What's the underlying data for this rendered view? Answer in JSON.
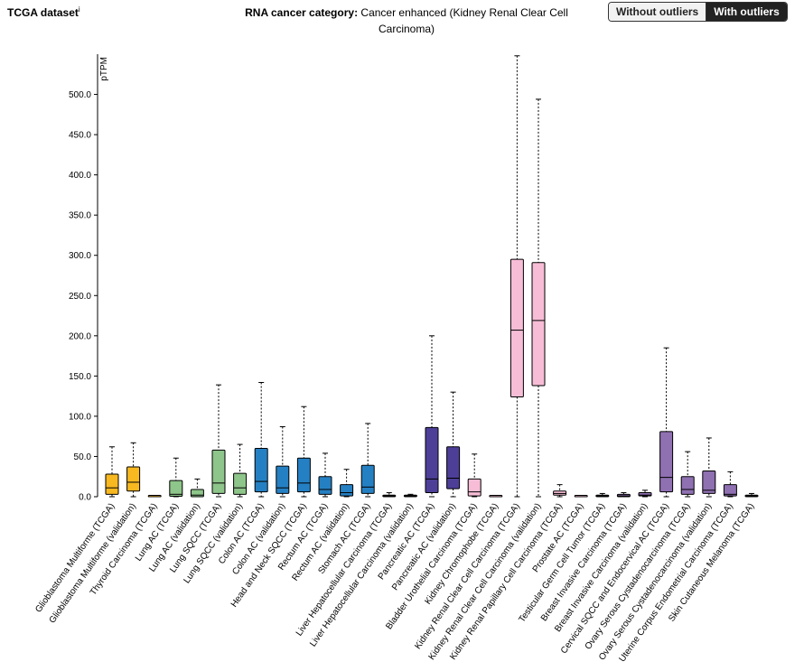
{
  "header": {
    "dataset_title": "TCGA dataset",
    "dataset_info_mark": "i",
    "category_label": "RNA cancer category:",
    "category_value": "Cancer enhanced (Kidney Renal Clear Cell Carcinoma)",
    "toggle": {
      "without_label": "Without outliers",
      "with_label": "With outliers",
      "active": "with"
    }
  },
  "colors": {
    "yellow": "#f7b820",
    "green": "#8ec58a",
    "blue": "#2580c3",
    "indigo": "#4d3f98",
    "pink": "#f7bdd6",
    "purple": "#8f70b1"
  },
  "chart_data": {
    "type": "boxplot",
    "ylabel": "pTPM",
    "ylim": [
      0,
      550
    ],
    "yticks": [
      0,
      50,
      100,
      150,
      200,
      250,
      300,
      350,
      400,
      450,
      500
    ],
    "ytick_labels": [
      "0.0",
      "50.0",
      "100.0",
      "150.0",
      "200.0",
      "250.0",
      "300.0",
      "350.0",
      "400.0",
      "450.0",
      "500.0"
    ],
    "categories": [
      "Glioblastoma Multiforme (TCGA)",
      "Glioblastoma Multiforme (validation)",
      "Thyroid Carcinoma (TCGA)",
      "Lung AC (TCGA)",
      "Lung AC (validation)",
      "Lung SQCC (TCGA)",
      "Lung SQCC (validation)",
      "Colon AC (TCGA)",
      "Colon AC (validation)",
      "Head and Neck SQCC (TCGA)",
      "Rectum AC (TCGA)",
      "Rectum AC (validation)",
      "Stomach AC (TCGA)",
      "Liver Hepatocellular Carcinoma (TCGA)",
      "Liver Hepatocellular Carcinoma (validation)",
      "Pancreatic AC (TCGA)",
      "Pancreatic AC (validation)",
      "Bladder Urothelial Carcinoma (TCGA)",
      "Kidney Chromophobe (TCGA)",
      "Kidney Renal Clear Cell Carcinoma (TCGA)",
      "Kidney Renal Clear Cell Carcinoma (validation)",
      "Kidney Renal Papillary Cell Carcinoma (TCGA)",
      "Prostate AC (TCGA)",
      "Testicular Germ Cell Tumor (TCGA)",
      "Breast Invasive Carcinoma (TCGA)",
      "Breast Invasive Carcinoma (validation)",
      "Cervical SQCC and Endocervical AC (TCGA)",
      "Ovary Serous Cystadenocarcinoma (TCGA)",
      "Ovary Serous Cystadenocarcinoma (validation)",
      "Uterine Corpus Endometrial Carcinoma (TCGA)",
      "Skin Cutaneous Melanoma (TCGA)"
    ],
    "boxes": [
      {
        "min": 0,
        "q1": 3,
        "median": 11,
        "q3": 28,
        "max": 62,
        "color": "yellow"
      },
      {
        "min": 0,
        "q1": 7,
        "median": 18,
        "q3": 37,
        "max": 67,
        "color": "yellow"
      },
      {
        "min": 0,
        "q1": 0,
        "median": 0,
        "q3": 1,
        "max": 1,
        "color": "yellow"
      },
      {
        "min": 0,
        "q1": 0.5,
        "median": 3,
        "q3": 20,
        "max": 48,
        "color": "green"
      },
      {
        "min": 0,
        "q1": 0,
        "median": 2,
        "q3": 9,
        "max": 22,
        "color": "green"
      },
      {
        "min": 0,
        "q1": 4,
        "median": 17,
        "q3": 58,
        "max": 139,
        "color": "green"
      },
      {
        "min": 0,
        "q1": 3,
        "median": 11,
        "q3": 29,
        "max": 65,
        "color": "green"
      },
      {
        "min": 0,
        "q1": 6,
        "median": 19,
        "q3": 60,
        "max": 142,
        "color": "blue"
      },
      {
        "min": 0,
        "q1": 4,
        "median": 11,
        "q3": 38,
        "max": 87,
        "color": "blue"
      },
      {
        "min": 0,
        "q1": 6,
        "median": 17,
        "q3": 48,
        "max": 112,
        "color": "blue"
      },
      {
        "min": 0,
        "q1": 3,
        "median": 9,
        "q3": 25,
        "max": 54,
        "color": "blue"
      },
      {
        "min": 0,
        "q1": 1,
        "median": 5,
        "q3": 15,
        "max": 34,
        "color": "blue"
      },
      {
        "min": 0,
        "q1": 4,
        "median": 12,
        "q3": 39,
        "max": 91,
        "color": "blue"
      },
      {
        "min": 0,
        "q1": 0,
        "median": 1,
        "q3": 2,
        "max": 5,
        "color": "blue"
      },
      {
        "min": 0,
        "q1": 0,
        "median": 1,
        "q3": 2,
        "max": 3,
        "color": "blue"
      },
      {
        "min": 0,
        "q1": 5,
        "median": 22,
        "q3": 86,
        "max": 200,
        "color": "indigo"
      },
      {
        "min": 0,
        "q1": 10,
        "median": 23,
        "q3": 62,
        "max": 130,
        "color": "indigo"
      },
      {
        "min": 0,
        "q1": 1,
        "median": 6,
        "q3": 22,
        "max": 53,
        "color": "pink"
      },
      {
        "min": 0,
        "q1": 0,
        "median": 0,
        "q3": 1,
        "max": 1,
        "color": "pink"
      },
      {
        "min": 0,
        "q1": 124,
        "median": 207,
        "q3": 295,
        "max": 548,
        "color": "pink"
      },
      {
        "min": 0,
        "q1": 138,
        "median": 219,
        "q3": 291,
        "max": 494,
        "color": "pink"
      },
      {
        "min": 0,
        "q1": 2,
        "median": 4,
        "q3": 7,
        "max": 15,
        "color": "pink"
      },
      {
        "min": 0,
        "q1": 0,
        "median": 0,
        "q3": 1,
        "max": 1,
        "color": "pink"
      },
      {
        "min": 0,
        "q1": 0,
        "median": 1,
        "q3": 2,
        "max": 4,
        "color": "purple"
      },
      {
        "min": 0,
        "q1": 0,
        "median": 1,
        "q3": 3,
        "max": 5,
        "color": "purple"
      },
      {
        "min": 0,
        "q1": 1,
        "median": 2,
        "q3": 5,
        "max": 8,
        "color": "purple"
      },
      {
        "min": 0,
        "q1": 6,
        "median": 24,
        "q3": 81,
        "max": 185,
        "color": "purple"
      },
      {
        "min": 0,
        "q1": 3,
        "median": 9,
        "q3": 25,
        "max": 56,
        "color": "purple"
      },
      {
        "min": 0,
        "q1": 4,
        "median": 8,
        "q3": 32,
        "max": 73,
        "color": "purple"
      },
      {
        "min": 0,
        "q1": 1,
        "median": 3,
        "q3": 15,
        "max": 31,
        "color": "purple"
      },
      {
        "min": 0,
        "q1": 0,
        "median": 1,
        "q3": 2,
        "max": 4,
        "color": "purple"
      }
    ]
  }
}
